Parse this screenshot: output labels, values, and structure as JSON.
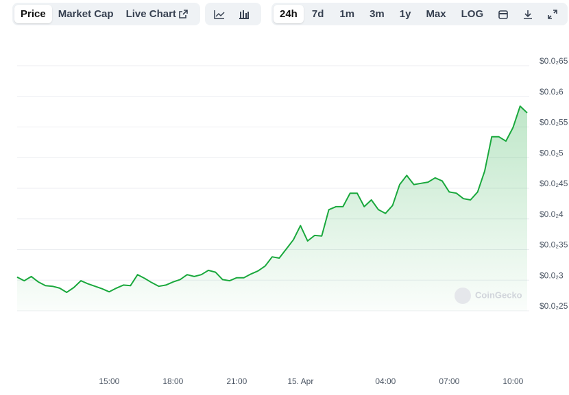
{
  "toolbar": {
    "tabs": [
      "Price",
      "Market Cap",
      "Live Chart"
    ],
    "ranges": [
      "24h",
      "7d",
      "1m",
      "3m",
      "1y",
      "Max",
      "LOG"
    ]
  },
  "chart_data": {
    "type": "area",
    "watermark": "CoinGecko",
    "color": "#19a83c",
    "grid": true,
    "categories": [
      null,
      null,
      null,
      null,
      null,
      null,
      null,
      null,
      null,
      null,
      null,
      null,
      null,
      "15:00",
      null,
      null,
      null,
      null,
      null,
      null,
      null,
      null,
      "18:00",
      null,
      null,
      null,
      null,
      null,
      null,
      null,
      null,
      "21:00",
      null,
      null,
      null,
      null,
      null,
      null,
      null,
      null,
      "15. Apr",
      null,
      null,
      null,
      null,
      null,
      null,
      null,
      null,
      null,
      null,
      null,
      "04:00",
      null,
      null,
      null,
      null,
      null,
      null,
      null,
      null,
      "07:00",
      null,
      null,
      null,
      null,
      null,
      null,
      null,
      null,
      "10:00",
      null,
      null
    ],
    "values": [
      0.00305,
      0.00299,
      0.00306,
      0.00297,
      0.00291,
      0.0029,
      0.00287,
      0.0028,
      0.00288,
      0.00299,
      0.00294,
      0.0029,
      0.00286,
      0.00281,
      0.00287,
      0.00292,
      0.00291,
      0.00309,
      0.00303,
      0.00296,
      0.0029,
      0.00292,
      0.00297,
      0.00301,
      0.00309,
      0.00306,
      0.00309,
      0.00316,
      0.00313,
      0.00301,
      0.00299,
      0.00304,
      0.00304,
      0.0031,
      0.00315,
      0.00323,
      0.00338,
      0.00336,
      0.00351,
      0.00366,
      0.00389,
      0.00364,
      0.00373,
      0.00372,
      0.00415,
      0.0042,
      0.0042,
      0.00442,
      0.00442,
      0.0042,
      0.00431,
      0.00415,
      0.00409,
      0.00422,
      0.00456,
      0.00471,
      0.00456,
      0.00458,
      0.0046,
      0.00467,
      0.00462,
      0.00444,
      0.00442,
      0.00433,
      0.00431,
      0.00444,
      0.00478,
      0.00534,
      0.00534,
      0.00527,
      0.00549,
      0.00584,
      0.00573
    ],
    "ylim": [
      0.0025,
      0.0065
    ],
    "yticks": [
      {
        "value": 0.0025,
        "label": "$0.0₂25"
      },
      {
        "value": 0.003,
        "label": "$0.0₂3"
      },
      {
        "value": 0.0035,
        "label": "$0.0₂35"
      },
      {
        "value": 0.004,
        "label": "$0.0₂4"
      },
      {
        "value": 0.0045,
        "label": "$0.0₂45"
      },
      {
        "value": 0.005,
        "label": "$0.0₂5"
      },
      {
        "value": 0.0055,
        "label": "$0.0₂55"
      },
      {
        "value": 0.006,
        "label": "$0.0₂6"
      },
      {
        "value": 0.0065,
        "label": "$0.0₂65"
      }
    ]
  }
}
